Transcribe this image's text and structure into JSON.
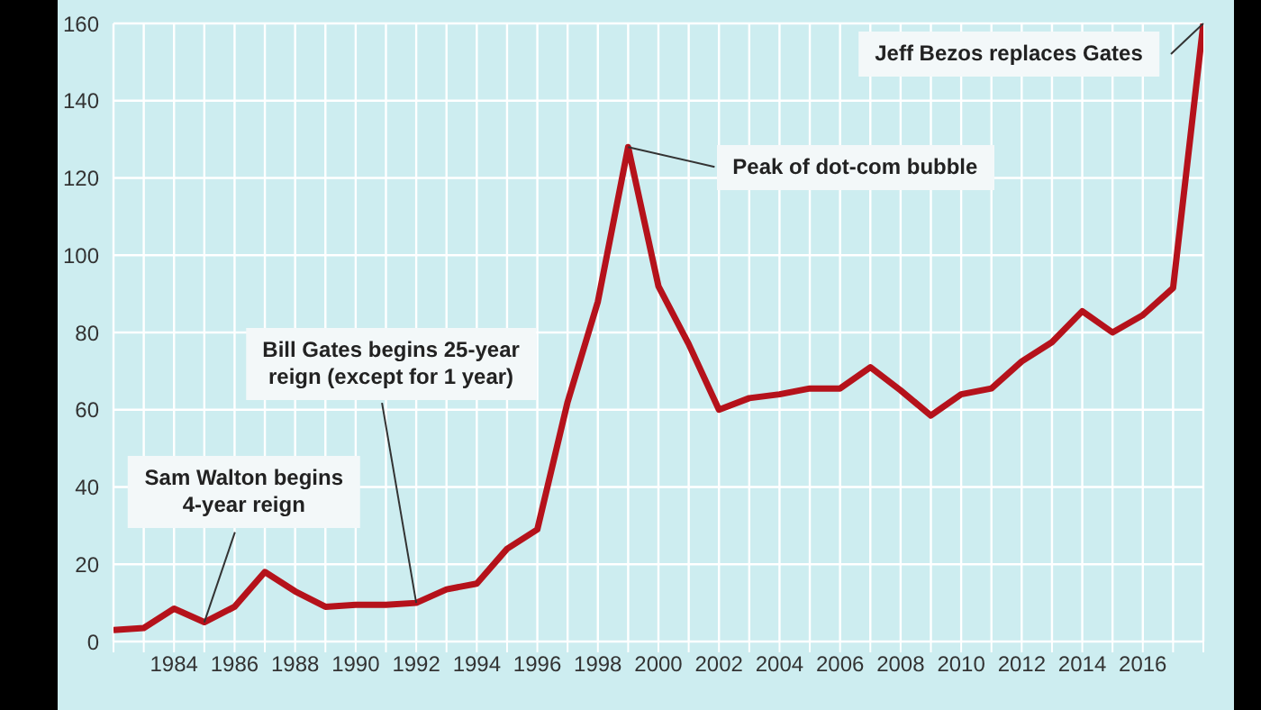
{
  "chart_data": {
    "type": "line",
    "x": [
      1982,
      1983,
      1984,
      1985,
      1986,
      1987,
      1988,
      1989,
      1990,
      1991,
      1992,
      1993,
      1994,
      1995,
      1996,
      1997,
      1998,
      1999,
      2000,
      2001,
      2002,
      2003,
      2004,
      2005,
      2006,
      2007,
      2008,
      2009,
      2010,
      2011,
      2012,
      2013,
      2014,
      2015,
      2016,
      2017,
      2018
    ],
    "series": [
      {
        "color": "#b5121b",
        "values": [
          3,
          3.5,
          8.5,
          5,
          9,
          18,
          13,
          9,
          9.5,
          9.5,
          10,
          13.5,
          15,
          24,
          29,
          62,
          88,
          128,
          92,
          77,
          60,
          63,
          64,
          65.5,
          65.5,
          71,
          65,
          58.5,
          64,
          65.5,
          72.5,
          77.5,
          85.5,
          80,
          84.5,
          91.5,
          160
        ]
      }
    ],
    "xlim": [
      1982,
      2018
    ],
    "xticks": [
      {
        "value": 1982,
        "label": null
      },
      {
        "value": 1983,
        "label": null
      },
      1984,
      {
        "value": 1985,
        "label": null
      },
      1986,
      {
        "value": 1987,
        "label": null
      },
      1988,
      {
        "value": 1989,
        "label": null
      },
      1990,
      {
        "value": 1991,
        "label": null
      },
      1992,
      {
        "value": 1993,
        "label": null
      },
      1994,
      {
        "value": 1995,
        "label": null
      },
      1996,
      {
        "value": 1997,
        "label": null
      },
      1998,
      {
        "value": 1999,
        "label": null
      },
      2000,
      {
        "value": 2001,
        "label": null
      },
      2002,
      {
        "value": 2003,
        "label": null
      },
      2004,
      {
        "value": 2005,
        "label": null
      },
      2006,
      {
        "value": 2007,
        "label": null
      },
      2008,
      {
        "value": 2009,
        "label": null
      },
      2010,
      {
        "value": 2011,
        "label": null
      },
      2012,
      {
        "value": 2013,
        "label": null
      },
      2014,
      {
        "value": 2015,
        "label": null
      },
      2016,
      {
        "value": 2017,
        "label": null
      },
      {
        "value": 2018,
        "label": null
      }
    ],
    "ylim": [
      0,
      160
    ],
    "yticks": [
      0,
      20,
      40,
      60,
      80,
      100,
      120,
      140,
      160
    ],
    "grid": true,
    "legend": false,
    "marker": "none",
    "line_style": "solid",
    "annotations": [
      {
        "text": "Sam Walton begins\n4-year reign",
        "x": 1985,
        "y": 5
      },
      {
        "text": "Bill Gates begins 25-year\nreign (except for 1 year)",
        "x": 1992,
        "y": 10
      },
      {
        "text": "Peak of dot-com bubble",
        "x": 1999,
        "y": 128
      },
      {
        "text": "Jeff Bezos replaces Gates",
        "x": 2018,
        "y": 160
      }
    ]
  }
}
